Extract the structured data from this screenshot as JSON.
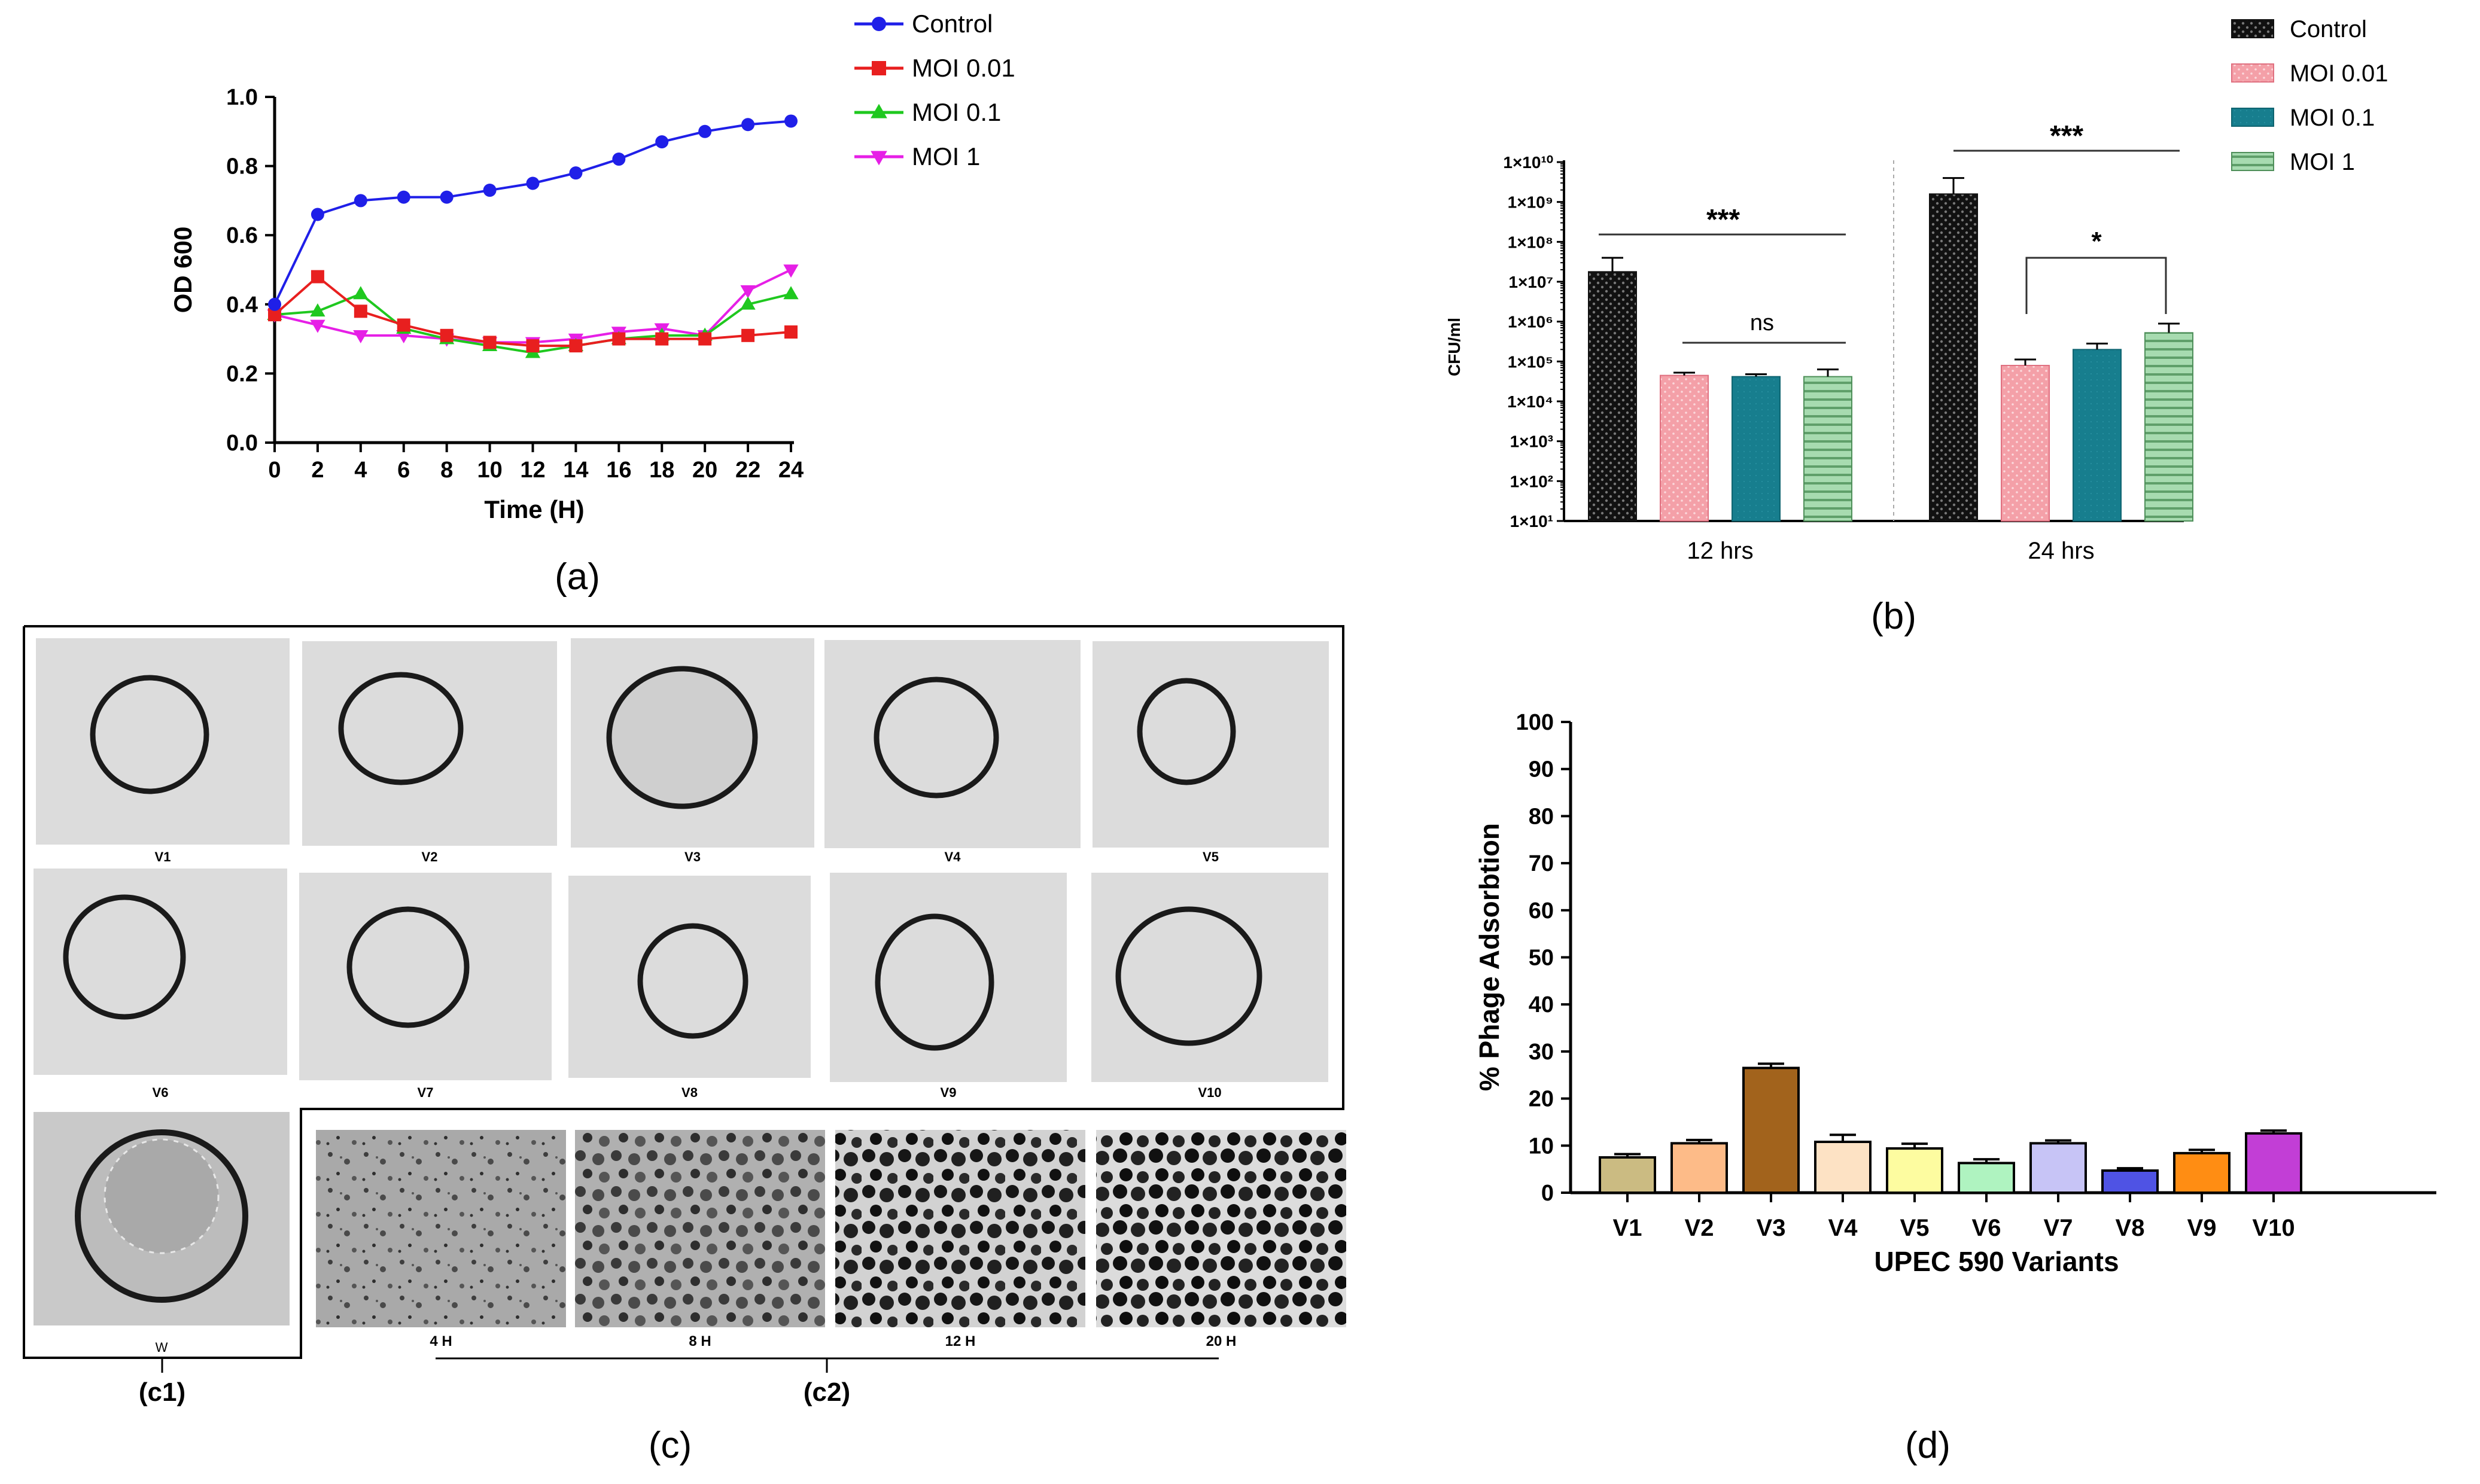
{
  "panels": {
    "a": "(a)",
    "b": "(b)",
    "c": "(c)",
    "d": "(d)"
  },
  "chart_data": [
    {
      "id": "a",
      "type": "line",
      "xlabel": "Time (H)",
      "ylabel": "OD 600",
      "xlim": [
        0,
        24
      ],
      "ylim": [
        0,
        1.0
      ],
      "xticks": [
        0,
        2,
        4,
        6,
        8,
        10,
        12,
        14,
        16,
        18,
        20,
        22,
        24
      ],
      "yticks": [
        0.0,
        0.2,
        0.4,
        0.6,
        0.8,
        1.0
      ],
      "ytick_labels": [
        "0.0",
        "0.2",
        "0.4",
        "0.6",
        "0.8",
        "1.0"
      ],
      "x": [
        0,
        2,
        4,
        6,
        8,
        10,
        12,
        14,
        16,
        18,
        20,
        22,
        24
      ],
      "series": [
        {
          "name": "Control",
          "color": "#1f1fe8",
          "marker": "circle",
          "values": [
            0.4,
            0.66,
            0.7,
            0.71,
            0.71,
            0.73,
            0.75,
            0.78,
            0.82,
            0.87,
            0.9,
            0.92,
            0.93
          ]
        },
        {
          "name": "MOI 0.01",
          "color": "#e81f1f",
          "marker": "square",
          "values": [
            0.37,
            0.48,
            0.38,
            0.34,
            0.31,
            0.29,
            0.28,
            0.28,
            0.3,
            0.3,
            0.3,
            0.31,
            0.32
          ]
        },
        {
          "name": "MOI  0.1",
          "color": "#1fc81f",
          "marker": "triangle-up",
          "values": [
            0.37,
            0.38,
            0.43,
            0.33,
            0.3,
            0.28,
            0.26,
            0.28,
            0.3,
            0.31,
            0.31,
            0.4,
            0.43
          ]
        },
        {
          "name": "MOI 1",
          "color": "#e61fe6",
          "marker": "triangle-down",
          "values": [
            0.37,
            0.34,
            0.31,
            0.31,
            0.3,
            0.29,
            0.29,
            0.3,
            0.32,
            0.33,
            0.31,
            0.44,
            0.5
          ]
        }
      ]
    },
    {
      "id": "b",
      "type": "bar",
      "ylabel": "CFU/ml",
      "yscale": "log",
      "ylim_log10": [
        1,
        10
      ],
      "ytick_labels": [
        "1×10¹",
        "1×10²",
        "1×10³",
        "1×10⁴",
        "1×10⁵",
        "1×10⁶",
        "1×10⁷",
        "1×10⁸",
        "1×10⁹",
        "1×10¹⁰"
      ],
      "categories": [
        "12 hrs",
        "24 hrs"
      ],
      "series": [
        {
          "name": "Control",
          "color": "#1a1a1a",
          "pattern": "dots-dark",
          "log10_values": [
            7.25,
            9.2
          ],
          "log10_err_top": [
            7.6,
            9.6
          ]
        },
        {
          "name": "MOI 0.01",
          "color": "#f4a0a8",
          "pattern": "dots-light",
          "log10_values": [
            4.65,
            4.9
          ],
          "log10_err_top": [
            4.72,
            5.05
          ]
        },
        {
          "name": "MOI 0.1",
          "color": "#177e8e",
          "pattern": "solid",
          "log10_values": [
            4.62,
            5.3
          ],
          "log10_err_top": [
            4.68,
            5.45
          ]
        },
        {
          "name": "MOI 1",
          "color": "#a7dbb0",
          "pattern": "stripes",
          "log10_values": [
            4.62,
            5.72
          ],
          "log10_err_top": [
            4.8,
            5.95
          ]
        }
      ],
      "annotations": [
        "***",
        "ns",
        "***",
        "*"
      ]
    },
    {
      "id": "d",
      "type": "bar",
      "xlabel": "UPEC 590 Variants",
      "ylabel": "% Phage Adsorbtion",
      "ylim": [
        0,
        100
      ],
      "yticks": [
        0,
        10,
        20,
        30,
        40,
        50,
        60,
        70,
        80,
        90,
        100
      ],
      "categories": [
        "V1",
        "V2",
        "V3",
        "V4",
        "V5",
        "V6",
        "V7",
        "V8",
        "V9",
        "V10"
      ],
      "values": [
        7.5,
        10.5,
        26.5,
        10.8,
        9.4,
        6.3,
        10.5,
        4.7,
        8.4,
        12.6
      ],
      "errors": [
        0.7,
        0.7,
        0.9,
        1.5,
        1.0,
        0.8,
        0.6,
        0.5,
        0.7,
        0.6
      ],
      "colors": [
        "#cbbb82",
        "#fdbb88",
        "#a2631c",
        "#fde2c4",
        "#fdfca0",
        "#aff3c0",
        "#c7c4f6",
        "#4f53e4",
        "#ff8d13",
        "#c23ed6"
      ]
    }
  ],
  "plates": {
    "variants": [
      "V1",
      "V2",
      "V3",
      "V4",
      "V5",
      "V6",
      "V7",
      "V8",
      "V9",
      "V10"
    ],
    "w_label": "W",
    "time_labels": [
      "4 H",
      "8 H",
      "12 H",
      "20 H"
    ],
    "c1_label": "(c1)",
    "c2_label": "(c2)"
  }
}
